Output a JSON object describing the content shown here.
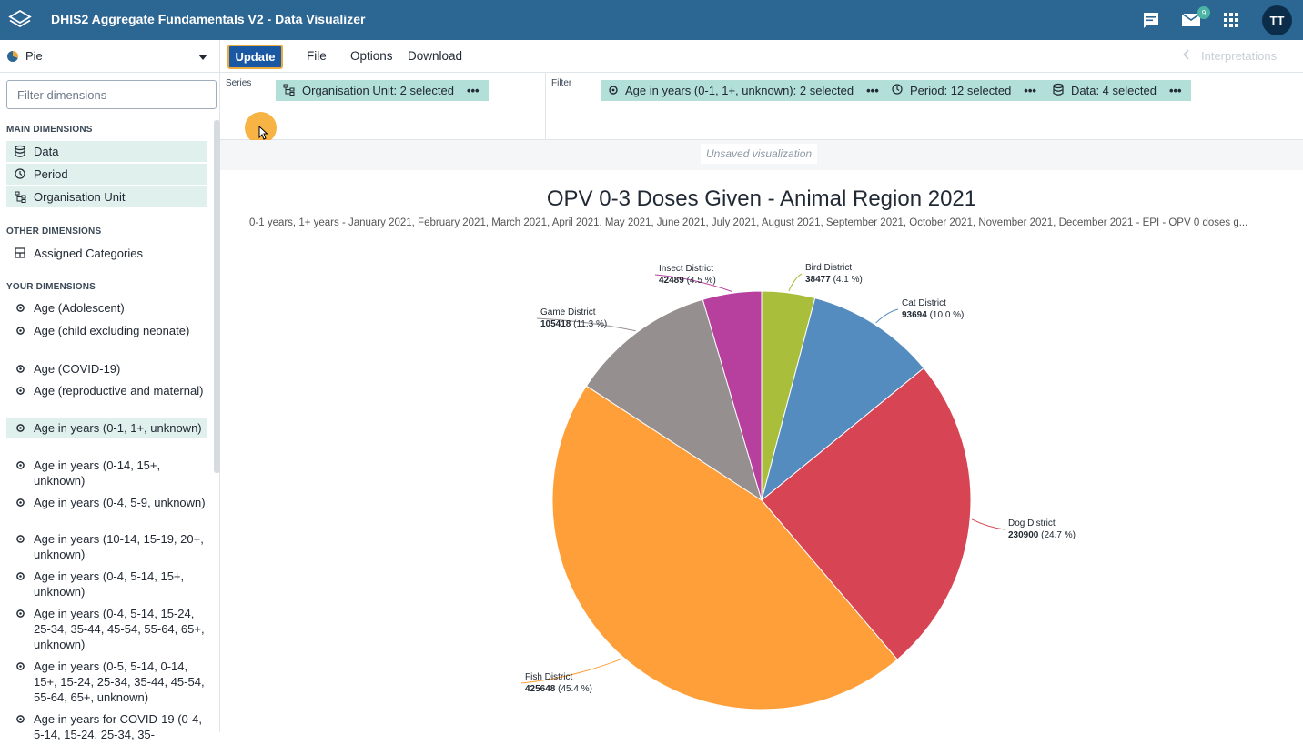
{
  "header": {
    "app_title": "DHIS2 Aggregate Fundamentals V2 - Data Visualizer",
    "message_badge": "9",
    "avatar_initials": "TT"
  },
  "vis_type": {
    "label": "Pie"
  },
  "sidebar": {
    "filter_placeholder": "Filter dimensions",
    "main_title": "MAIN DIMENSIONS",
    "main_items": [
      {
        "label": "Data",
        "icon": "database-icon"
      },
      {
        "label": "Period",
        "icon": "clock-icon"
      },
      {
        "label": "Organisation Unit",
        "icon": "org-tree-icon"
      }
    ],
    "other_title": "OTHER DIMENSIONS",
    "other_items": [
      {
        "label": "Assigned Categories",
        "icon": "grid-icon"
      }
    ],
    "your_title": "YOUR DIMENSIONS",
    "your_items": [
      {
        "label": "Age (Adolescent)"
      },
      {
        "label": "Age (child excluding neonate)"
      },
      {
        "label": "Age (COVID-19)"
      },
      {
        "label": "Age (reproductive and maternal)"
      },
      {
        "label": "Age in years (0-1, 1+, unknown)"
      },
      {
        "label": "Age in years (0-14, 15+, unknown)"
      },
      {
        "label": "Age in years (0-4, 5-9, unknown)"
      },
      {
        "label": "Age in years (10-14, 15-19, 20+, unknown)"
      },
      {
        "label": "Age in years (0-4, 5-14, 15+, unknown)"
      },
      {
        "label": "Age in years (0-4, 5-14, 15-24, 25-34, 35-44, 45-54, 55-64, 65+, unknown)"
      },
      {
        "label": "Age in years (0-5, 5-14, 0-14, 15+, 15-24, 25-34, 35-44, 45-54, 55-64, 65+, unknown)"
      },
      {
        "label": "Age in years for COVID-19 (0-4, 5-14, 15-24, 25-34, 35-"
      }
    ]
  },
  "toolbar": {
    "update_label": "Update",
    "file_label": "File",
    "options_label": "Options",
    "download_label": "Download",
    "interpretations_label": "Interpretations"
  },
  "layout": {
    "series_label": "Series",
    "filter_label": "Filter",
    "series_chips": [
      {
        "label": "Organisation Unit: 2 selected"
      }
    ],
    "filter_chips": [
      {
        "label": "Age in years (0-1, 1+, unknown): 2 selected"
      },
      {
        "label": "Period: 12 selected"
      },
      {
        "label": "Data: 4 selected"
      }
    ],
    "more_glyph": "•••"
  },
  "visualization": {
    "unsaved_label": "Unsaved visualization"
  },
  "chart_data": {
    "type": "pie",
    "title": "OPV 0-3 Doses Given - Animal Region 2021",
    "subtitle": "0-1 years, 1+ years - January 2021, February 2021, March 2021, April 2021, May 2021, June 2021, July 2021, August 2021, September 2021, October 2021, November 2021, December 2021 - EPI - OPV 0 doses g...",
    "slices": [
      {
        "name": "Bird District",
        "value": 38477,
        "percent": "4.1 %",
        "color": "#a9be3b"
      },
      {
        "name": "Cat District",
        "value": 93694,
        "percent": "10.0 %",
        "color": "#558cc0"
      },
      {
        "name": "Dog District",
        "value": 230900,
        "percent": "24.7 %",
        "color": "#d74554"
      },
      {
        "name": "Fish District",
        "value": 425648,
        "percent": "45.4 %",
        "color": "#ff9f3a"
      },
      {
        "name": "Game District",
        "value": 105418,
        "percent": "11.3 %",
        "color": "#968f8f"
      },
      {
        "name": "Insect District",
        "value": 42489,
        "percent": "4.5 %",
        "color": "#b7409f"
      }
    ]
  }
}
